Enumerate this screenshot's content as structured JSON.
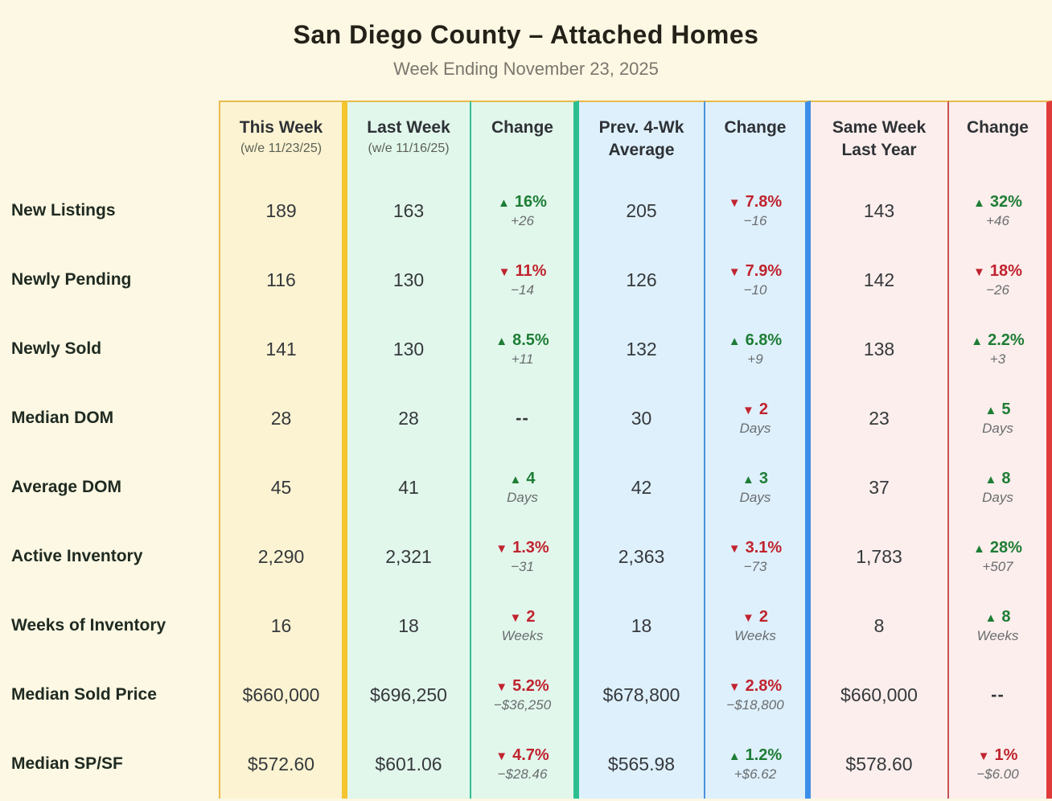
{
  "chart_data": {
    "type": "table",
    "title": "San Diego County – Attached Homes",
    "subtitle": "Week Ending November 23, 2025",
    "columns": [
      {
        "label": "This Week",
        "sub": "(w/e 11/23/25)"
      },
      {
        "label": "Last Week",
        "sub": "(w/e 11/16/25)"
      },
      {
        "label": "Change",
        "sub": ""
      },
      {
        "label": "Prev. 4-Wk Average",
        "sub": ""
      },
      {
        "label": "Change",
        "sub": ""
      },
      {
        "label": "Same Week Last Year",
        "sub": ""
      },
      {
        "label": "Change",
        "sub": ""
      }
    ],
    "rows": [
      {
        "label": "New Listings",
        "this_week": "189",
        "last_week": "163",
        "change_vs_last_week": {
          "dir": "up",
          "main": "16%",
          "sub": "+26"
        },
        "prev_4wk_avg": "205",
        "change_vs_4wk_avg": {
          "dir": "down",
          "main": "7.8%",
          "sub": "−16"
        },
        "same_week_last_year": "143",
        "change_vs_last_year": {
          "dir": "up",
          "main": "32%",
          "sub": "+46"
        }
      },
      {
        "label": "Newly Pending",
        "this_week": "116",
        "last_week": "130",
        "change_vs_last_week": {
          "dir": "down",
          "main": "11%",
          "sub": "−14"
        },
        "prev_4wk_avg": "126",
        "change_vs_4wk_avg": {
          "dir": "down",
          "main": "7.9%",
          "sub": "−10"
        },
        "same_week_last_year": "142",
        "change_vs_last_year": {
          "dir": "down",
          "main": "18%",
          "sub": "−26"
        }
      },
      {
        "label": "Newly Sold",
        "this_week": "141",
        "last_week": "130",
        "change_vs_last_week": {
          "dir": "up",
          "main": "8.5%",
          "sub": "+11"
        },
        "prev_4wk_avg": "132",
        "change_vs_4wk_avg": {
          "dir": "up",
          "main": "6.8%",
          "sub": "+9"
        },
        "same_week_last_year": "138",
        "change_vs_last_year": {
          "dir": "up",
          "main": "2.2%",
          "sub": "+3"
        }
      },
      {
        "label": "Median DOM",
        "this_week": "28",
        "last_week": "28",
        "change_vs_last_week": {
          "dir": null,
          "main": "--",
          "sub": ""
        },
        "prev_4wk_avg": "30",
        "change_vs_4wk_avg": {
          "dir": "down",
          "main": "2",
          "sub": "Days"
        },
        "same_week_last_year": "23",
        "change_vs_last_year": {
          "dir": "up",
          "main": "5",
          "sub": "Days"
        }
      },
      {
        "label": "Average DOM",
        "this_week": "45",
        "last_week": "41",
        "change_vs_last_week": {
          "dir": "up",
          "main": "4",
          "sub": "Days"
        },
        "prev_4wk_avg": "42",
        "change_vs_4wk_avg": {
          "dir": "up",
          "main": "3",
          "sub": "Days"
        },
        "same_week_last_year": "37",
        "change_vs_last_year": {
          "dir": "up",
          "main": "8",
          "sub": "Days"
        }
      },
      {
        "label": "Active Inventory",
        "this_week": "2,290",
        "last_week": "2,321",
        "change_vs_last_week": {
          "dir": "down",
          "main": "1.3%",
          "sub": "−31"
        },
        "prev_4wk_avg": "2,363",
        "change_vs_4wk_avg": {
          "dir": "down",
          "main": "3.1%",
          "sub": "−73"
        },
        "same_week_last_year": "1,783",
        "change_vs_last_year": {
          "dir": "up",
          "main": "28%",
          "sub": "+507"
        }
      },
      {
        "label": "Weeks of Inventory",
        "this_week": "16",
        "last_week": "18",
        "change_vs_last_week": {
          "dir": "down",
          "main": "2",
          "sub": "Weeks"
        },
        "prev_4wk_avg": "18",
        "change_vs_4wk_avg": {
          "dir": "down",
          "main": "2",
          "sub": "Weeks"
        },
        "same_week_last_year": "8",
        "change_vs_last_year": {
          "dir": "up",
          "main": "8",
          "sub": "Weeks"
        }
      },
      {
        "label": "Median Sold Price",
        "this_week": "$660,000",
        "last_week": "$696,250",
        "change_vs_last_week": {
          "dir": "down",
          "main": "5.2%",
          "sub": "−$36,250"
        },
        "prev_4wk_avg": "$678,800",
        "change_vs_4wk_avg": {
          "dir": "down",
          "main": "2.8%",
          "sub": "−$18,800"
        },
        "same_week_last_year": "$660,000",
        "change_vs_last_year": {
          "dir": null,
          "main": "--",
          "sub": ""
        }
      },
      {
        "label": "Median SP/SF",
        "this_week": "$572.60",
        "last_week": "$601.06",
        "change_vs_last_week": {
          "dir": "down",
          "main": "4.7%",
          "sub": "−$28.46"
        },
        "prev_4wk_avg": "$565.98",
        "change_vs_4wk_avg": {
          "dir": "up",
          "main": "1.2%",
          "sub": "+$6.62"
        },
        "same_week_last_year": "$578.60",
        "change_vs_last_year": {
          "dir": "down",
          "main": "1%",
          "sub": "−$6.00"
        }
      }
    ]
  },
  "icons": {
    "up": "▲",
    "down": "▼"
  },
  "colors": {
    "page_background": "#FCF8E3",
    "up_green": "#1E7D35",
    "down_red": "#C0232E",
    "group_this_week_accent": "#F5C42F",
    "group_last_week_accent": "#2CBE90",
    "group_4wk_avg_accent": "#3D8EE8",
    "group_last_year_accent": "#E03B3B"
  }
}
